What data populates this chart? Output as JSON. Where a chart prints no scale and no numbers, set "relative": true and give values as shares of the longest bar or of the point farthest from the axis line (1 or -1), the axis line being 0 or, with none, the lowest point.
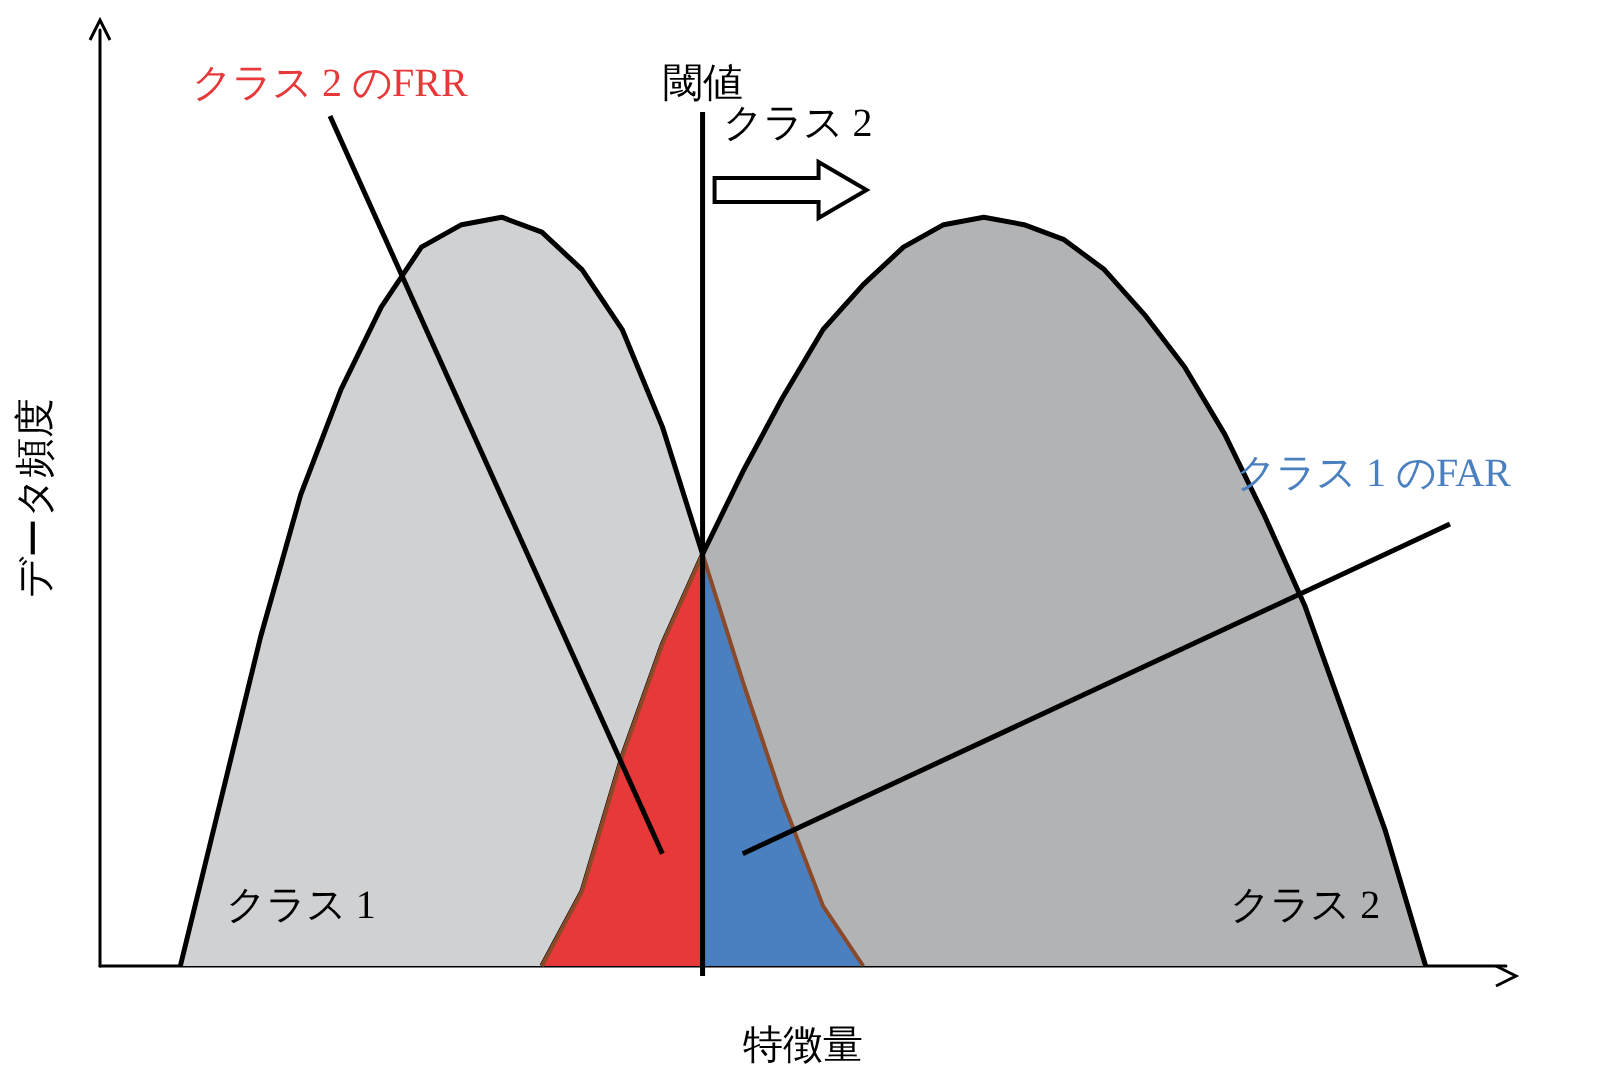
{
  "chart_data": {
    "type": "area",
    "relative": true,
    "xlabel": "特徴量",
    "ylabel": "データ頻度",
    "categories": [
      null,
      null,
      null,
      null,
      null,
      null,
      null,
      null,
      null,
      null,
      null,
      null,
      null,
      null,
      null,
      null,
      null,
      null,
      null,
      null,
      null,
      null,
      null,
      null,
      null,
      null,
      null,
      null,
      null,
      null,
      null,
      null,
      null,
      null,
      null,
      null
    ],
    "series": [
      {
        "name": "クラス 1",
        "color": "#d0d1d3",
        "values": [
          null,
          null,
          0,
          0.22,
          0.44,
          0.63,
          0.77,
          0.88,
          0.96,
          0.99,
          1,
          0.98,
          0.93,
          0.85,
          0.72,
          0.55,
          0.38,
          0.22,
          0.08,
          0,
          null,
          null,
          null,
          null,
          null,
          null,
          null,
          null,
          null,
          null,
          null,
          null,
          null,
          null,
          null,
          null
        ]
      },
      {
        "name": "クラス 2",
        "color": "#b2b3b5",
        "values": [
          null,
          null,
          null,
          null,
          null,
          null,
          null,
          null,
          null,
          null,
          null,
          0,
          0.1,
          0.28,
          0.43,
          0.55,
          0.66,
          0.76,
          0.85,
          0.91,
          0.96,
          0.99,
          1,
          0.99,
          0.97,
          0.93,
          0.87,
          0.8,
          0.71,
          0.6,
          0.48,
          0.33,
          0.18,
          0,
          null,
          null
        ]
      },
      {
        "name": "クラス 2 のFRR",
        "color": "#e8393a",
        "values": [
          null,
          null,
          null,
          null,
          null,
          null,
          null,
          null,
          null,
          null,
          null,
          0,
          0.1,
          0.28,
          0.43,
          0.55,
          null,
          null,
          null,
          null,
          null,
          null,
          null,
          null,
          null,
          null,
          null,
          null,
          null,
          null,
          null,
          null,
          null,
          null,
          null,
          null
        ]
      },
      {
        "name": "クラス 1 のFAR",
        "color": "#4a7fc0",
        "values": [
          null,
          null,
          null,
          null,
          null,
          null,
          null,
          null,
          null,
          null,
          null,
          null,
          null,
          null,
          null,
          0.55,
          0.38,
          0.22,
          0.08,
          0,
          null,
          null,
          null,
          null,
          null,
          null,
          null,
          null,
          null,
          null,
          null,
          null,
          null,
          null,
          null,
          null
        ]
      }
    ],
    "annotations": [
      "閾値",
      "クラス 2"
    ]
  }
}
